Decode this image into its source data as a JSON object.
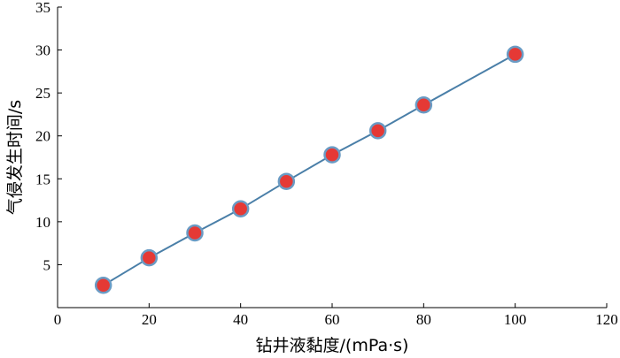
{
  "chart_data": {
    "type": "line",
    "title": "",
    "xlabel": "钻井液黏度/(mPa·s)",
    "ylabel": "气侵发生时间/s",
    "xlim": [
      0,
      120
    ],
    "ylim": [
      0,
      35
    ],
    "xticks": [
      0,
      20,
      40,
      60,
      80,
      100,
      120
    ],
    "yticks": [
      5,
      10,
      15,
      20,
      25,
      30,
      35
    ],
    "grid": false,
    "legend": "none",
    "series": [
      {
        "x": [
          10,
          20,
          30,
          40,
          50,
          60,
          70,
          80,
          100
        ],
        "y": [
          2.6,
          5.8,
          8.7,
          11.5,
          14.7,
          17.8,
          20.6,
          23.6,
          29.5
        ],
        "line_color": "#4a7fa8",
        "marker_fill": "#e53935",
        "marker_edge": "#6a9bc4"
      }
    ]
  }
}
